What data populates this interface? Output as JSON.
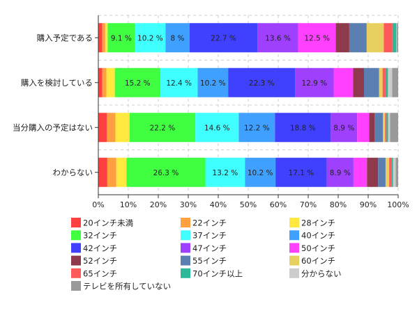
{
  "chart_data": {
    "type": "bar",
    "orientation": "horizontal",
    "stacked": "percent",
    "grid": true,
    "legend_placement": "bottom",
    "xlim": [
      0,
      100
    ],
    "x_ticks": [
      "0%",
      "10%",
      "20%",
      "30%",
      "40%",
      "50%",
      "60%",
      "70%",
      "80%",
      "90%",
      "100%"
    ],
    "categories": [
      "購入予定である",
      "購入を検討している",
      "当分購入の予定はない",
      "わからない"
    ],
    "series": [
      {
        "name": "20インチ未満",
        "color": "#ff4040",
        "values": [
          1.3,
          1.3,
          2.9,
          3.0
        ]
      },
      {
        "name": "22インチ",
        "color": "#ffa040",
        "values": [
          1.0,
          1.4,
          2.9,
          3.0
        ]
      },
      {
        "name": "28インチ",
        "color": "#ffe840",
        "values": [
          0.8,
          2.8,
          4.7,
          3.4
        ]
      },
      {
        "name": "32インチ",
        "color": "#40ff40",
        "values": [
          9.1,
          15.2,
          22.2,
          26.3
        ]
      },
      {
        "name": "37インチ",
        "color": "#40ffff",
        "values": [
          10.2,
          12.4,
          14.6,
          13.2
        ]
      },
      {
        "name": "40インチ",
        "color": "#40a0ff",
        "values": [
          8.0,
          10.2,
          12.2,
          10.2
        ]
      },
      {
        "name": "42インチ",
        "color": "#4040ff",
        "values": [
          22.7,
          22.3,
          18.8,
          17.1
        ]
      },
      {
        "name": "47インチ",
        "color": "#a040ff",
        "values": [
          13.6,
          12.9,
          8.9,
          8.9
        ]
      },
      {
        "name": "50インチ",
        "color": "#ff40ff",
        "values": [
          12.5,
          6.5,
          4.0,
          4.5
        ]
      },
      {
        "name": "52インチ",
        "color": "#8f3a4c",
        "values": [
          4.5,
          3.6,
          1.9,
          3.7
        ]
      },
      {
        "name": "55インチ",
        "color": "#5a7fb0",
        "values": [
          5.8,
          5.0,
          2.8,
          2.5
        ]
      },
      {
        "name": "60インチ",
        "color": "#e8d060",
        "values": [
          5.7,
          1.2,
          0.7,
          1.2
        ]
      },
      {
        "name": "65インチ",
        "color": "#ff5a5a",
        "values": [
          2.9,
          1.0,
          0.5,
          0.7
        ]
      },
      {
        "name": "70インチ以上",
        "color": "#2db89a",
        "values": [
          1.3,
          0.8,
          0.5,
          0.6
        ]
      },
      {
        "name": "分からない",
        "color": "#cccccc",
        "values": [
          0.2,
          1.4,
          0.7,
          0.9
        ]
      },
      {
        "name": "テレビを所有していない",
        "color": "#999999",
        "values": [
          0.4,
          2.0,
          2.7,
          0.8
        ]
      }
    ],
    "label_min_value": 8.0
  }
}
